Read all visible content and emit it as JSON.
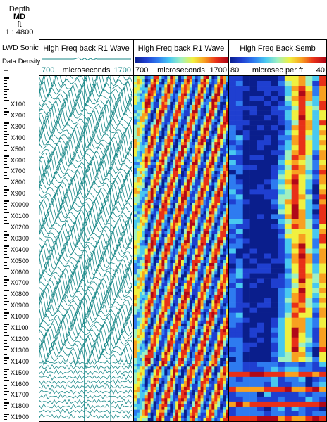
{
  "depth_header": {
    "title": "Depth",
    "reference": "MD",
    "unit": "ft",
    "scale": "1 : 4800"
  },
  "log_info": {
    "tool": "LWD Sonic",
    "mode": "Data Density",
    "dash": "–"
  },
  "tracks": [
    {
      "title": "High Freq back R1 Wave",
      "scale_left": "700",
      "scale_unit": "microseconds",
      "scale_right": "1700",
      "style": "wiggle",
      "color": "#1b8a8a"
    },
    {
      "title": "High Freq back R1 Wave",
      "scale_left": "700",
      "scale_unit": "microseconds",
      "scale_right": "1700",
      "style": "variable-density"
    },
    {
      "title": "High Freq Back Semb",
      "scale_left": "80",
      "scale_unit": "microsec per ft",
      "scale_right": "40",
      "style": "semblance"
    }
  ],
  "depth_labels": [
    "X100",
    "X200",
    "X300",
    "X400",
    "X500",
    "X600",
    "X700",
    "X800",
    "X900",
    "X0000",
    "X0100",
    "X0200",
    "X0300",
    "X0400",
    "X0500",
    "X0600",
    "X0700",
    "X0800",
    "X0900",
    "X1000",
    "X1100",
    "X1200",
    "X1300",
    "X1400",
    "X1500",
    "X1600",
    "X1700",
    "X1800",
    "X1900"
  ],
  "colors": {
    "wiggle": "#1b8a8a",
    "frame": "#000000",
    "colormap": [
      "#0a1e8c",
      "#1f3fd0",
      "#2e7bf0",
      "#48c8f0",
      "#9ff0c0",
      "#f0f040",
      "#f8a020",
      "#e83018",
      "#b00818"
    ]
  }
}
